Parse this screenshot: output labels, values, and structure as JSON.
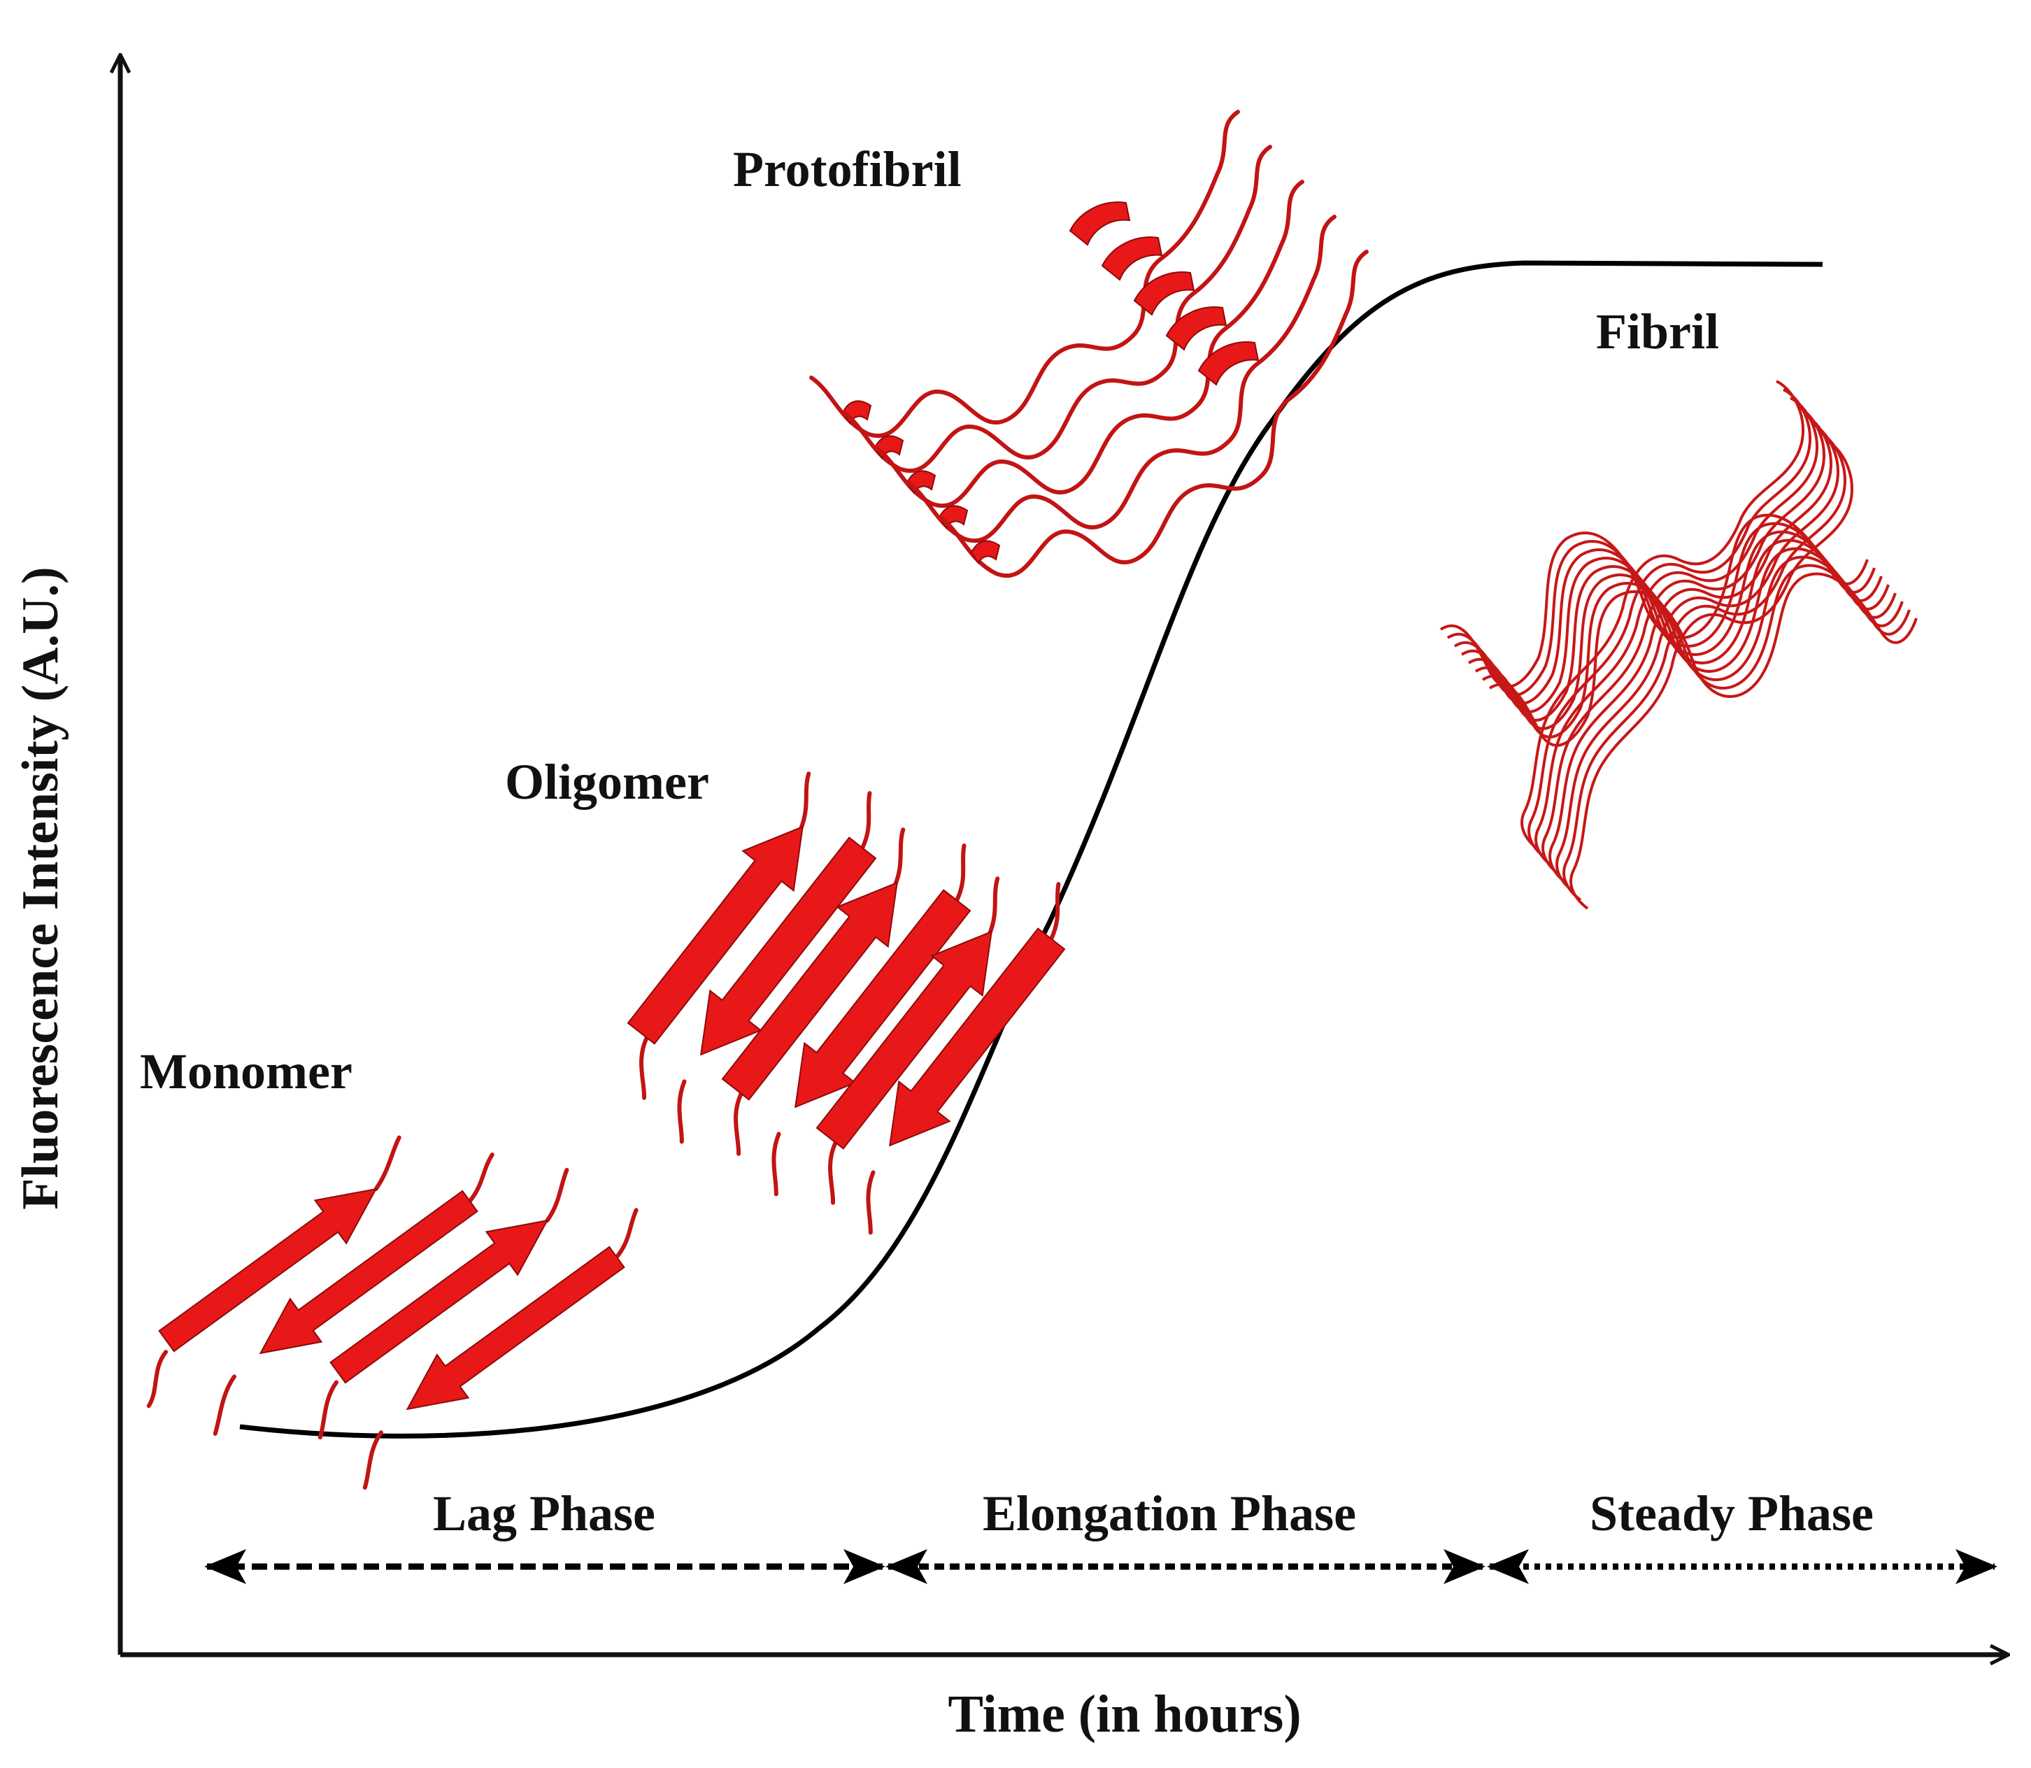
{
  "y_axis_label": "Fluorescence Intensity (A.U.)",
  "x_axis_label": "Time (in hours)",
  "stages": {
    "monomer": "Monomer",
    "oligomer": "Oligomer",
    "protofibril": "Protofibril",
    "fibril": "Fibril"
  },
  "phases": {
    "lag": "Lag Phase",
    "elongation": "Elongation Phase",
    "steady": "Steady Phase"
  },
  "colors": {
    "protein": "#e81818",
    "protein_dark": "#8e0a0a",
    "axis": "#111111"
  }
}
